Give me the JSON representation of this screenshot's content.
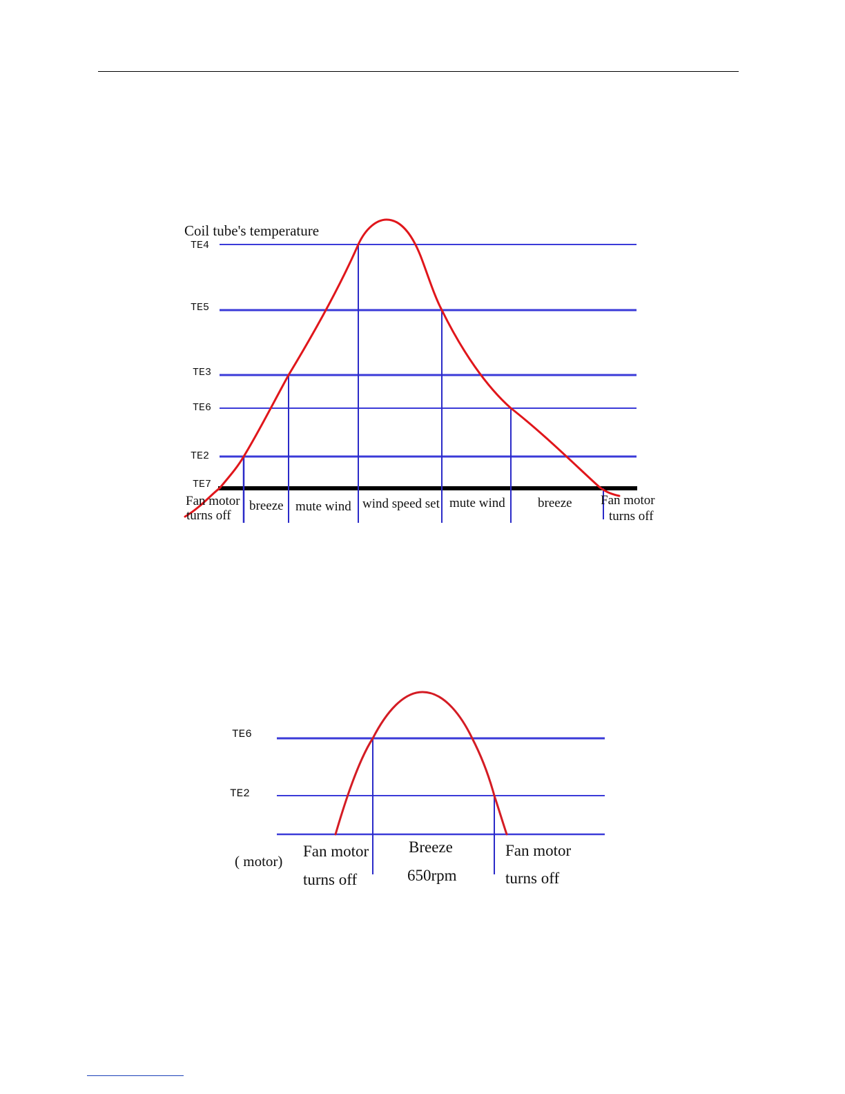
{
  "diagram1": {
    "title": "Coil tube's temperature",
    "levels": [
      "TE4",
      "TE5",
      "TE3",
      "TE6",
      "TE2",
      "TE7"
    ],
    "zones": [
      {
        "line1": "Fan motor",
        "line2": "turns off"
      },
      {
        "line1": "breeze"
      },
      {
        "line1": "mute wind"
      },
      {
        "line1": "wind speed set"
      },
      {
        "line1": "mute wind"
      },
      {
        "line1": "breeze"
      },
      {
        "line1": "Fan motor",
        "line2": "turns off"
      }
    ]
  },
  "diagram2": {
    "levels": [
      "TE6",
      "TE2"
    ],
    "axis_label": "( motor)",
    "zones": [
      {
        "line1": "Fan motor",
        "line2": "turns off"
      },
      {
        "line1": "Breeze",
        "line2": "650rpm"
      },
      {
        "line1": "Fan motor",
        "line2": "turns off"
      }
    ]
  },
  "colors": {
    "curve": "#e0161b",
    "level_line": "#3a3ad8",
    "divider": "#2a2ac8",
    "baseline": "#000000"
  }
}
